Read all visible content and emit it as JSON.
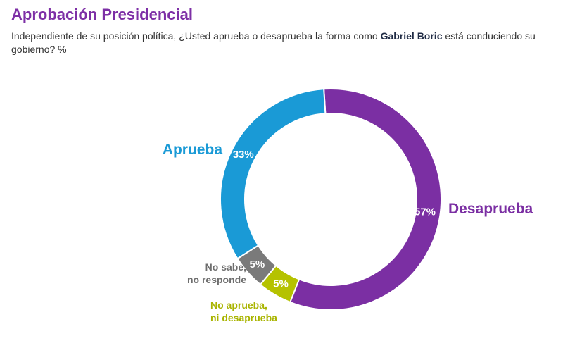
{
  "header": {
    "title": "Aprobación Presidencial",
    "question_before": "Independiente de su posición política, ¿Usted aprueba o desaprueba la forma como ",
    "question_bold": "Gabriel Boric",
    "question_after": " está conduciendo su gobierno? %"
  },
  "chart_data": {
    "type": "pie",
    "donut": true,
    "title": "Aprobación Presidencial",
    "unit": "%",
    "slices": [
      {
        "name": "Desaprueba",
        "value": 57,
        "value_label": "57%",
        "color": "#7b2fa3",
        "name_lines": [
          "Desaprueba"
        ]
      },
      {
        "name": "No aprueba, ni desaprueba",
        "value": 5,
        "value_label": "5%",
        "color": "#b5c200",
        "name_lines": [
          "No aprueba,",
          "ni desaprueba"
        ]
      },
      {
        "name": "No sabe, no responde",
        "value": 5,
        "value_label": "5%",
        "color": "#7a7a7a",
        "name_lines": [
          "No sabe,",
          "no responde"
        ]
      },
      {
        "name": "Aprueba",
        "value": 33,
        "value_label": "33%",
        "color": "#1a9ad6",
        "name_lines": [
          "Aprueba"
        ]
      }
    ]
  }
}
